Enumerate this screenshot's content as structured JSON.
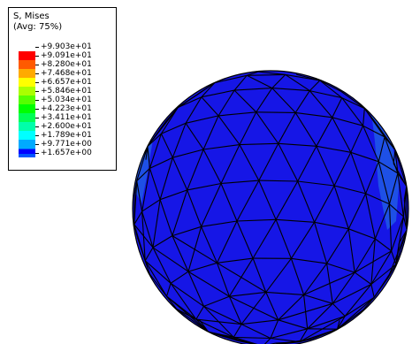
{
  "legend": {
    "title": "S, Mises",
    "subtitle": "(Avg: 75%)",
    "entries": [
      {
        "value": "+9.903e+01",
        "color": "#ff0000"
      },
      {
        "value": "+9.091e+01",
        "color": "#ff5a00"
      },
      {
        "value": "+8.280e+01",
        "color": "#ffaa00"
      },
      {
        "value": "+7.468e+01",
        "color": "#ffff00"
      },
      {
        "value": "+6.657e+01",
        "color": "#aaff00"
      },
      {
        "value": "+5.846e+01",
        "color": "#55ff00"
      },
      {
        "value": "+5.034e+01",
        "color": "#00ff00"
      },
      {
        "value": "+4.223e+01",
        "color": "#00ff55"
      },
      {
        "value": "+3.411e+01",
        "color": "#00ffaa"
      },
      {
        "value": "+2.600e+01",
        "color": "#00ffff"
      },
      {
        "value": "+1.789e+01",
        "color": "#00aaff"
      },
      {
        "value": "+9.771e+00",
        "color": "#0055ff"
      },
      {
        "value": "+1.657e+00",
        "color": "#0000ff"
      }
    ]
  },
  "colors": {
    "mesh_fill": "#1616e6",
    "mesh_highlight": "#1e50e6",
    "mesh_edge": "#000000"
  }
}
